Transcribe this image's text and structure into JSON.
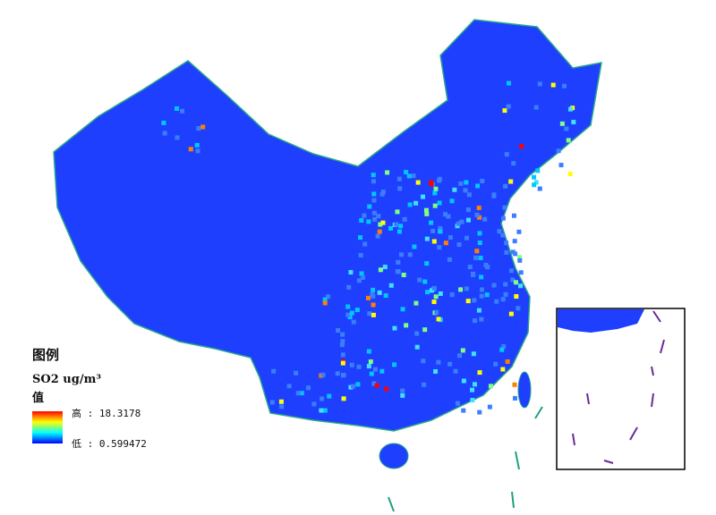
{
  "legend": {
    "title": "图例",
    "layer": "SO2 ug/m³",
    "field": "值",
    "high_label": "高 : 18.3178",
    "low_label": "低 : 0.599472",
    "high_value": 18.3178,
    "low_value": 0.599472,
    "ramp_colors": [
      "#ff0000",
      "#ff8000",
      "#ffff00",
      "#80ff80",
      "#00ffff",
      "#0080ff",
      "#0000ff"
    ]
  },
  "colors": {
    "base": "#1f3fff",
    "border": "#20a080",
    "inset_frame": "#000000"
  }
}
